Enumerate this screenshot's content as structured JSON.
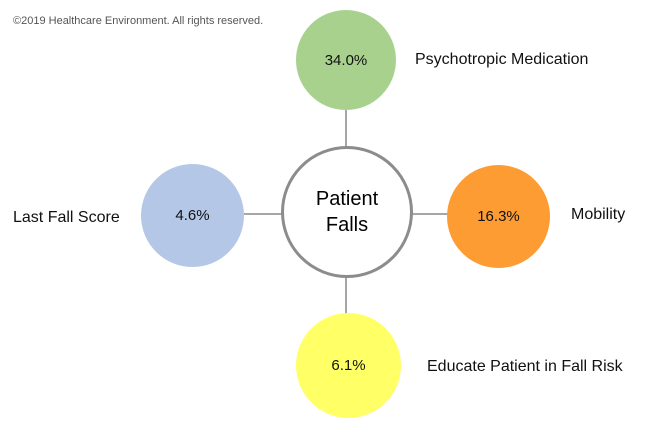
{
  "copyright": "©2019 Healthcare Environment. All rights reserved.",
  "center": {
    "line1": "Patient",
    "line2": "Falls"
  },
  "factors": {
    "top": {
      "value": "34.0%",
      "label": "Psychotropic Medication",
      "color": "#a9d18e"
    },
    "left": {
      "value": "4.6%",
      "label": "Last Fall Score",
      "color": "#b4c7e7"
    },
    "right": {
      "value": "16.3%",
      "label": "Mobility",
      "color": "#fe9c34"
    },
    "bottom": {
      "value": "6.1%",
      "label": "Educate Patient in Fall Risk",
      "color": "#ffff66"
    }
  }
}
